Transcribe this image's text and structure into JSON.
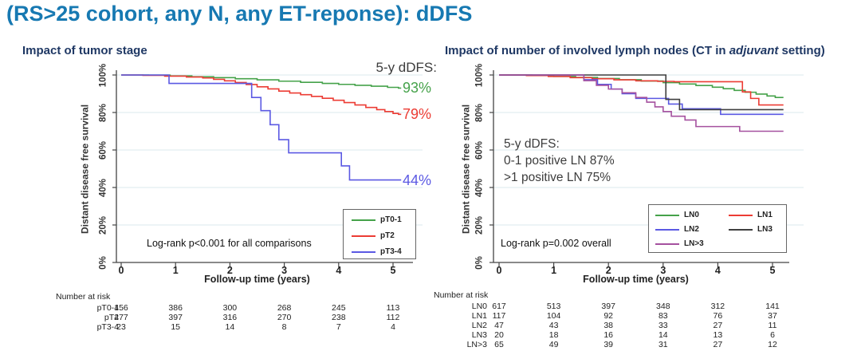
{
  "slide": {
    "title": "(RS>25 cohort, any N, any ET-reponse): dDFS",
    "title_color": "#1779b2",
    "section_title_color": "#1f3864"
  },
  "chart_data": [
    {
      "type": "line",
      "id": "impact-of-tumor-stage",
      "title": "Impact of tumor stage",
      "title_parts": [
        {
          "text": "Impact of tumor stage",
          "italic": false
        }
      ],
      "xlabel": "Follow-up time (years)",
      "ylabel": "Distant disease free survival",
      "xlim": [
        0,
        5.2
      ],
      "ylim": [
        0,
        100
      ],
      "xticks": [
        "0",
        "1",
        "2",
        "3",
        "4",
        "5"
      ],
      "yticks": [
        "0%",
        "20%",
        "40%",
        "60%",
        "80%",
        "100%"
      ],
      "grid": true,
      "legend_position": "bottom-right",
      "annotation_lines": [
        "5-y dDFS:"
      ],
      "stat_note": "Log-rank p<0.001 for all comparisons",
      "series": [
        {
          "name": "pT0-1",
          "color": "#45a24a",
          "five_year_label": "93%",
          "five_year_value": 93,
          "end_x": 5.15,
          "points": [
            [
              0,
              100
            ],
            [
              0.5,
              99.9
            ],
            [
              0.9,
              99.5
            ],
            [
              1.3,
              99.1
            ],
            [
              1.7,
              98.6
            ],
            [
              2.1,
              98
            ],
            [
              2.5,
              97.4
            ],
            [
              2.9,
              96.7
            ],
            [
              3.3,
              96.1
            ],
            [
              3.7,
              95.5
            ],
            [
              4.0,
              95
            ],
            [
              4.3,
              94.5
            ],
            [
              4.6,
              94
            ],
            [
              4.9,
              93.4
            ],
            [
              5.1,
              93
            ]
          ]
        },
        {
          "name": "pT2",
          "color": "#ec3c34",
          "five_year_label": "79%",
          "five_year_value": 79,
          "end_x": 5.15,
          "points": [
            [
              0,
              100
            ],
            [
              0.4,
              99.8
            ],
            [
              0.8,
              99.4
            ],
            [
              1.2,
              98.9
            ],
            [
              1.5,
              98.4
            ],
            [
              1.7,
              97.7
            ],
            [
              1.9,
              96.9
            ],
            [
              2.1,
              96
            ],
            [
              2.3,
              94.9
            ],
            [
              2.5,
              93.7
            ],
            [
              2.7,
              92.6
            ],
            [
              2.9,
              91.4
            ],
            [
              3.1,
              90.4
            ],
            [
              3.3,
              89.5
            ],
            [
              3.5,
              88.6
            ],
            [
              3.7,
              87.6
            ],
            [
              3.9,
              86.5
            ],
            [
              4.1,
              85.3
            ],
            [
              4.3,
              84
            ],
            [
              4.5,
              82.7
            ],
            [
              4.7,
              81.5
            ],
            [
              4.85,
              80.5
            ],
            [
              5.0,
              79.5
            ],
            [
              5.1,
              79
            ]
          ]
        },
        {
          "name": "pT3-4",
          "color": "#5b59e3",
          "five_year_label": "44%",
          "five_year_value": 44,
          "end_x": 5.15,
          "points": [
            [
              0,
              100
            ],
            [
              0.88,
              95.5
            ],
            [
              2.4,
              88
            ],
            [
              2.57,
              81
            ],
            [
              2.74,
              73.5
            ],
            [
              2.9,
              65.5
            ],
            [
              3.08,
              58.5
            ],
            [
              4.05,
              51.5
            ],
            [
              4.2,
              44
            ]
          ]
        }
      ],
      "number_at_risk": {
        "title": "Number at risk",
        "rows": [
          {
            "label": "pT0-1",
            "counts": [
              "456",
              "386",
              "300",
              "268",
              "245",
              "113"
            ]
          },
          {
            "label": "pT2",
            "counts": [
              "477",
              "397",
              "316",
              "270",
              "238",
              "112"
            ]
          },
          {
            "label": "pT3-4",
            "counts": [
              "23",
              "15",
              "14",
              "8",
              "7",
              "4"
            ]
          }
        ]
      }
    },
    {
      "type": "line",
      "id": "impact-of-lymph-nodes",
      "title": "Impact of number of involved lymph nodes (CT in adjuvant setting)",
      "title_parts": [
        {
          "text": "Impact of number of involved lymph nodes (CT in ",
          "italic": false
        },
        {
          "text": "adjuvant",
          "italic": true
        },
        {
          "text": " setting)",
          "italic": false
        }
      ],
      "xlabel": "Follow-up time (years)",
      "ylabel": "Distant disease free survival",
      "xlim": [
        0,
        5.2
      ],
      "ylim": [
        0,
        100
      ],
      "xticks": [
        "0",
        "1",
        "2",
        "3",
        "4",
        "5"
      ],
      "yticks": [
        "0%",
        "20%",
        "40%",
        "60%",
        "80%",
        "100%"
      ],
      "grid": true,
      "legend_position": "bottom-right",
      "annotation_lines": [
        "5-y dDFS:",
        "0-1 positive LN 87%",
        ">1 positive LN 75%"
      ],
      "stat_note": "Log-rank p=0.002 overall",
      "series": [
        {
          "name": "LN0",
          "color": "#45a24a",
          "end_x": 5.2,
          "points": [
            [
              0,
              100
            ],
            [
              0.6,
              99.7
            ],
            [
              1.0,
              99.2
            ],
            [
              1.4,
              98.7
            ],
            [
              1.8,
              98.1
            ],
            [
              2.2,
              97.5
            ],
            [
              2.6,
              96.8
            ],
            [
              3.0,
              95.9
            ],
            [
              3.3,
              95.2
            ],
            [
              3.6,
              94.4
            ],
            [
              3.9,
              93.5
            ],
            [
              4.1,
              92.7
            ],
            [
              4.3,
              91.8
            ],
            [
              4.5,
              90.8
            ],
            [
              4.7,
              89.8
            ],
            [
              4.9,
              88.8
            ],
            [
              5.05,
              88
            ]
          ]
        },
        {
          "name": "LN1",
          "color": "#ec3c34",
          "end_x": 5.2,
          "points": [
            [
              0,
              100
            ],
            [
              0.5,
              99.7
            ],
            [
              0.9,
              99.2
            ],
            [
              1.3,
              98.6
            ],
            [
              1.7,
              98
            ],
            [
              2.1,
              97.4
            ],
            [
              2.5,
              96.9
            ],
            [
              2.9,
              96.6
            ],
            [
              3.2,
              96.4
            ],
            [
              4.45,
              91
            ],
            [
              4.6,
              87.5
            ],
            [
              4.75,
              84
            ]
          ]
        },
        {
          "name": "LN2",
          "color": "#5b59e3",
          "end_x": 5.2,
          "points": [
            [
              0,
              100
            ],
            [
              1.55,
              97.5
            ],
            [
              1.8,
              95
            ],
            [
              2.05,
              92.5
            ],
            [
              2.25,
              90
            ],
            [
              2.5,
              87.5
            ],
            [
              3.1,
              84.5
            ],
            [
              3.35,
              82
            ],
            [
              4.05,
              79
            ]
          ]
        },
        {
          "name": "LN3",
          "color": "#3f3f3f",
          "end_x": 5.2,
          "points": [
            [
              0,
              100
            ],
            [
              3.05,
              87
            ],
            [
              3.3,
              81.5
            ]
          ]
        },
        {
          "name": "LN>3",
          "color": "#a5519f",
          "end_x": 5.2,
          "points": [
            [
              0,
              100
            ],
            [
              1.55,
              97
            ],
            [
              1.78,
              94.5
            ],
            [
              2.0,
              92.5
            ],
            [
              2.25,
              90.5
            ],
            [
              2.5,
              88
            ],
            [
              2.7,
              85.5
            ],
            [
              2.85,
              83
            ],
            [
              3.0,
              80.5
            ],
            [
              3.15,
              78
            ],
            [
              3.4,
              76
            ],
            [
              3.6,
              72.5
            ],
            [
              4.4,
              70
            ]
          ]
        }
      ],
      "number_at_risk": {
        "title": "Number at risk",
        "rows": [
          {
            "label": "LN0",
            "counts": [
              "617",
              "513",
              "397",
              "348",
              "312",
              "141"
            ]
          },
          {
            "label": "LN1",
            "counts": [
              "117",
              "104",
              "92",
              "83",
              "76",
              "37"
            ]
          },
          {
            "label": "LN2",
            "counts": [
              "47",
              "43",
              "38",
              "33",
              "27",
              "11"
            ]
          },
          {
            "label": "LN3",
            "counts": [
              "20",
              "18",
              "16",
              "14",
              "13",
              "6"
            ]
          },
          {
            "label": "LN>3",
            "counts": [
              "65",
              "49",
              "39",
              "31",
              "27",
              "12"
            ]
          }
        ]
      }
    }
  ]
}
